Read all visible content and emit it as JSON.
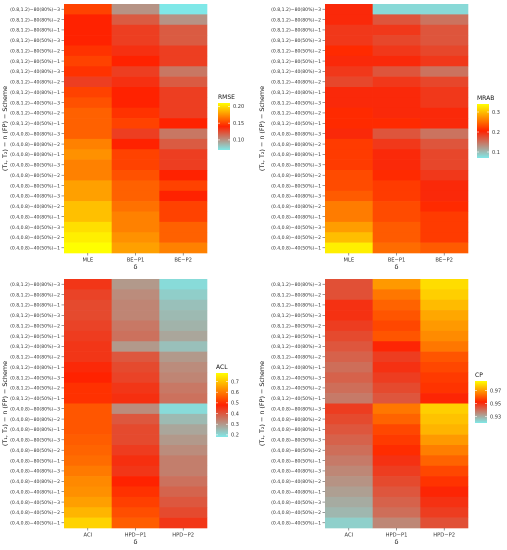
{
  "chart_data": [
    {
      "type": "heatmap",
      "title": "",
      "xlabel": "δ",
      "ylabel": "(T₁, T₂) − n (FP) − Scheme",
      "legend_title": "RMSE",
      "legend_ticks": [
        "0.20",
        "0.15",
        "0.10"
      ],
      "legend_tick_values": [
        0.2,
        0.15,
        0.1
      ],
      "legend_range": [
        0.07,
        0.21
      ],
      "legend_colors": [
        "#7fe8e8",
        "#ff2200",
        "#ffff00"
      ],
      "columns": [
        "MLE",
        "BE−P1",
        "BE−P2"
      ],
      "rows": [
        "(0.8,1.2)−80(80%)−3",
        "(0.8,1.2)−80(80%)−2",
        "(0.8,1.2)−80(80%)−1",
        "(0.8,1.2)−80(50%)−3",
        "(0.8,1.2)−80(50%)−2",
        "(0.8,1.2)−80(50%)−1",
        "(0.8,1.2)−40(80%)−3",
        "(0.8,1.2)−40(80%)−2",
        "(0.8,1.2)−40(80%)−1",
        "(0.8,1.2)−40(50%)−3",
        "(0.8,1.2)−40(50%)−2",
        "(0.8,1.2)−40(50%)−1",
        "(0.4,0.8)−80(80%)−3",
        "(0.4,0.8)−80(80%)−2",
        "(0.4,0.8)−80(80%)−1",
        "(0.4,0.8)−80(50%)−3",
        "(0.4,0.8)−80(50%)−2",
        "(0.4,0.8)−80(50%)−1",
        "(0.4,0.8)−40(80%)−3",
        "(0.4,0.8)−40(80%)−2",
        "(0.4,0.8)−40(80%)−1",
        "(0.4,0.8)−40(50%)−3",
        "(0.4,0.8)−40(50%)−2",
        "(0.4,0.8)−40(50%)−1"
      ],
      "values": [
        [
          0.15,
          0.1,
          0.07
        ],
        [
          0.14,
          0.12,
          0.1
        ],
        [
          0.14,
          0.13,
          0.12
        ],
        [
          0.14,
          0.13,
          0.12
        ],
        [
          0.145,
          0.135,
          0.13
        ],
        [
          0.15,
          0.14,
          0.13
        ],
        [
          0.145,
          0.13,
          0.11
        ],
        [
          0.13,
          0.135,
          0.12
        ],
        [
          0.15,
          0.14,
          0.13
        ],
        [
          0.155,
          0.14,
          0.13
        ],
        [
          0.16,
          0.145,
          0.13
        ],
        [
          0.16,
          0.15,
          0.14
        ],
        [
          0.16,
          0.13,
          0.11
        ],
        [
          0.17,
          0.14,
          0.12
        ],
        [
          0.175,
          0.15,
          0.13
        ],
        [
          0.17,
          0.15,
          0.13
        ],
        [
          0.17,
          0.155,
          0.14
        ],
        [
          0.18,
          0.16,
          0.15
        ],
        [
          0.18,
          0.16,
          0.14
        ],
        [
          0.19,
          0.165,
          0.15
        ],
        [
          0.19,
          0.17,
          0.15
        ],
        [
          0.2,
          0.17,
          0.16
        ],
        [
          0.205,
          0.175,
          0.16
        ],
        [
          0.21,
          0.18,
          0.17
        ]
      ]
    },
    {
      "type": "heatmap",
      "title": "",
      "xlabel": "δ",
      "ylabel": "(T₁, T₂) − n (FP) − Scheme",
      "legend_title": "MRAB",
      "legend_ticks": [
        "0.3",
        "0.2",
        "0.1"
      ],
      "legend_tick_values": [
        0.3,
        0.2,
        0.1
      ],
      "legend_range": [
        0.07,
        0.34
      ],
      "legend_colors": [
        "#7fe8e8",
        "#ff2200",
        "#ffff00"
      ],
      "columns": [
        "MLE",
        "BE−P1",
        "BE−P2"
      ],
      "rows": [
        "(0.8,1.2)−80(80%)−3",
        "(0.8,1.2)−80(80%)−2",
        "(0.8,1.2)−80(80%)−1",
        "(0.8,1.2)−80(50%)−3",
        "(0.8,1.2)−80(50%)−2",
        "(0.8,1.2)−80(50%)−1",
        "(0.8,1.2)−40(80%)−3",
        "(0.8,1.2)−40(80%)−2",
        "(0.8,1.2)−40(80%)−1",
        "(0.8,1.2)−40(50%)−3",
        "(0.8,1.2)−40(50%)−2",
        "(0.8,1.2)−40(50%)−1",
        "(0.4,0.8)−80(80%)−3",
        "(0.4,0.8)−80(80%)−2",
        "(0.4,0.8)−80(80%)−1",
        "(0.4,0.8)−80(50%)−3",
        "(0.4,0.8)−80(50%)−2",
        "(0.4,0.8)−80(50%)−1",
        "(0.4,0.8)−40(80%)−3",
        "(0.4,0.8)−40(80%)−2",
        "(0.4,0.8)−40(80%)−1",
        "(0.4,0.8)−40(50%)−3",
        "(0.4,0.8)−40(50%)−2",
        "(0.4,0.8)−40(50%)−1"
      ],
      "values": [
        [
          0.2,
          0.08,
          0.08
        ],
        [
          0.2,
          0.17,
          0.15
        ],
        [
          0.19,
          0.19,
          0.17
        ],
        [
          0.19,
          0.18,
          0.17
        ],
        [
          0.21,
          0.19,
          0.18
        ],
        [
          0.2,
          0.2,
          0.19
        ],
        [
          0.19,
          0.17,
          0.15
        ],
        [
          0.18,
          0.19,
          0.18
        ],
        [
          0.2,
          0.2,
          0.19
        ],
        [
          0.2,
          0.2,
          0.19
        ],
        [
          0.21,
          0.2,
          0.2
        ],
        [
          0.21,
          0.21,
          0.2
        ],
        [
          0.2,
          0.17,
          0.15
        ],
        [
          0.22,
          0.19,
          0.17
        ],
        [
          0.22,
          0.2,
          0.18
        ],
        [
          0.22,
          0.2,
          0.18
        ],
        [
          0.23,
          0.21,
          0.19
        ],
        [
          0.23,
          0.22,
          0.2
        ],
        [
          0.24,
          0.22,
          0.2
        ],
        [
          0.26,
          0.23,
          0.21
        ],
        [
          0.26,
          0.23,
          0.22
        ],
        [
          0.28,
          0.24,
          0.22
        ],
        [
          0.3,
          0.24,
          0.22
        ],
        [
          0.33,
          0.25,
          0.24
        ]
      ]
    },
    {
      "type": "heatmap",
      "title": "",
      "xlabel": "δ",
      "ylabel": "(T₁, T₂) − n (FP) − Scheme",
      "legend_title": "ACL",
      "legend_ticks": [
        "0.7",
        "0.6",
        "0.5",
        "0.4",
        "0.3",
        "0.2"
      ],
      "legend_tick_values": [
        0.7,
        0.6,
        0.5,
        0.4,
        0.3,
        0.2
      ],
      "legend_range": [
        0.18,
        0.78
      ],
      "legend_colors": [
        "#7fe8e8",
        "#ff2200",
        "#ffff00"
      ],
      "columns": [
        "ACI",
        "HPD−P1",
        "HPD−P2"
      ],
      "rows": [
        "(0.8,1.2)−80(80%)−3",
        "(0.8,1.2)−80(80%)−2",
        "(0.8,1.2)−80(80%)−1",
        "(0.8,1.2)−80(50%)−3",
        "(0.8,1.2)−80(50%)−2",
        "(0.8,1.2)−80(50%)−1",
        "(0.8,1.2)−40(80%)−3",
        "(0.8,1.2)−40(80%)−2",
        "(0.8,1.2)−40(80%)−1",
        "(0.8,1.2)−40(50%)−3",
        "(0.8,1.2)−40(50%)−2",
        "(0.8,1.2)−40(50%)−1",
        "(0.4,0.8)−80(80%)−3",
        "(0.4,0.8)−80(80%)−2",
        "(0.4,0.8)−80(80%)−1",
        "(0.4,0.8)−80(50%)−3",
        "(0.4,0.8)−80(50%)−2",
        "(0.4,0.8)−80(50%)−1",
        "(0.4,0.8)−40(80%)−3",
        "(0.4,0.8)−40(80%)−2",
        "(0.4,0.8)−40(80%)−1",
        "(0.4,0.8)−40(50%)−3",
        "(0.4,0.8)−40(50%)−2",
        "(0.4,0.8)−40(50%)−1"
      ],
      "values": [
        [
          0.45,
          0.3,
          0.2
        ],
        [
          0.43,
          0.32,
          0.22
        ],
        [
          0.42,
          0.33,
          0.24
        ],
        [
          0.42,
          0.33,
          0.25
        ],
        [
          0.43,
          0.35,
          0.26
        ],
        [
          0.44,
          0.36,
          0.28
        ],
        [
          0.45,
          0.3,
          0.24
        ],
        [
          0.45,
          0.4,
          0.3
        ],
        [
          0.47,
          0.42,
          0.32
        ],
        [
          0.48,
          0.43,
          0.33
        ],
        [
          0.5,
          0.45,
          0.35
        ],
        [
          0.5,
          0.46,
          0.36
        ],
        [
          0.55,
          0.32,
          0.2
        ],
        [
          0.55,
          0.4,
          0.25
        ],
        [
          0.55,
          0.42,
          0.28
        ],
        [
          0.56,
          0.42,
          0.3
        ],
        [
          0.57,
          0.44,
          0.32
        ],
        [
          0.58,
          0.46,
          0.34
        ],
        [
          0.6,
          0.45,
          0.34
        ],
        [
          0.62,
          0.48,
          0.36
        ],
        [
          0.63,
          0.5,
          0.38
        ],
        [
          0.65,
          0.52,
          0.4
        ],
        [
          0.68,
          0.54,
          0.42
        ],
        [
          0.72,
          0.56,
          0.45
        ]
      ]
    },
    {
      "type": "heatmap",
      "title": "",
      "xlabel": "δ",
      "ylabel": "(T₁, T₂) − n (FP) − Scheme",
      "legend_title": "CP",
      "legend_ticks": [
        "0.97",
        "0.95",
        "0.93"
      ],
      "legend_tick_values": [
        0.97,
        0.95,
        0.93
      ],
      "legend_range": [
        0.92,
        0.985
      ],
      "legend_colors": [
        "#7fe8e8",
        "#ff2200",
        "#ffff00"
      ],
      "columns": [
        "ACI",
        "HPD−P1",
        "HPD−P2"
      ],
      "rows": [
        "(0.8,1.2)−80(80%)−3",
        "(0.8,1.2)−80(80%)−2",
        "(0.8,1.2)−80(80%)−1",
        "(0.8,1.2)−80(50%)−3",
        "(0.8,1.2)−80(50%)−2",
        "(0.8,1.2)−80(50%)−1",
        "(0.8,1.2)−40(80%)−3",
        "(0.8,1.2)−40(80%)−2",
        "(0.8,1.2)−40(80%)−1",
        "(0.8,1.2)−40(50%)−3",
        "(0.8,1.2)−40(50%)−2",
        "(0.8,1.2)−40(50%)−1",
        "(0.4,0.8)−80(80%)−3",
        "(0.4,0.8)−80(80%)−2",
        "(0.4,0.8)−80(80%)−1",
        "(0.4,0.8)−80(50%)−3",
        "(0.4,0.8)−80(50%)−2",
        "(0.4,0.8)−80(50%)−1",
        "(0.4,0.8)−40(80%)−3",
        "(0.4,0.8)−40(80%)−2",
        "(0.4,0.8)−40(80%)−1",
        "(0.4,0.8)−40(50%)−3",
        "(0.4,0.8)−40(50%)−2",
        "(0.4,0.8)−40(50%)−1"
      ],
      "values": [
        [
          0.945,
          0.97,
          0.98
        ],
        [
          0.945,
          0.965,
          0.978
        ],
        [
          0.95,
          0.962,
          0.975
        ],
        [
          0.95,
          0.96,
          0.972
        ],
        [
          0.948,
          0.958,
          0.97
        ],
        [
          0.946,
          0.96,
          0.968
        ],
        [
          0.944,
          0.952,
          0.965
        ],
        [
          0.942,
          0.948,
          0.96
        ],
        [
          0.94,
          0.95,
          0.958
        ],
        [
          0.942,
          0.948,
          0.956
        ],
        [
          0.94,
          0.946,
          0.955
        ],
        [
          0.938,
          0.944,
          0.952
        ],
        [
          0.948,
          0.965,
          0.978
        ],
        [
          0.946,
          0.962,
          0.976
        ],
        [
          0.944,
          0.958,
          0.974
        ],
        [
          0.942,
          0.956,
          0.97
        ],
        [
          0.94,
          0.954,
          0.966
        ],
        [
          0.938,
          0.95,
          0.962
        ],
        [
          0.936,
          0.948,
          0.958
        ],
        [
          0.934,
          0.946,
          0.955
        ],
        [
          0.932,
          0.944,
          0.952
        ],
        [
          0.93,
          0.942,
          0.95
        ],
        [
          0.928,
          0.94,
          0.948
        ],
        [
          0.924,
          0.936,
          0.945
        ]
      ]
    }
  ]
}
